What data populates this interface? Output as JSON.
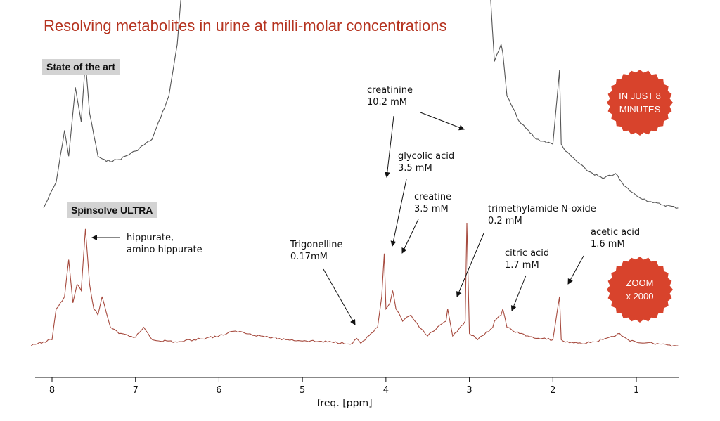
{
  "title": "Resolving metabolites in urine at milli-molar concentrations",
  "labels": {
    "state_of_art": "State of the art",
    "spinsolve_ultra": "Spinsolve ULTRA"
  },
  "badges": {
    "time": "IN JUST 8\nMINUTES",
    "zoom": "ZOOM\nx 2000"
  },
  "colors": {
    "title": "#b5331f",
    "ultra_trace": "#a64a3e",
    "state_trace": "#555555",
    "badge": "#d8432c"
  },
  "chart_data": {
    "type": "line",
    "xlabel": "freq. [ppm]",
    "xlim": [
      8.25,
      0.5
    ],
    "x_ticks": [
      8,
      7,
      6,
      5,
      4,
      3,
      2,
      1
    ],
    "x_tick_labels": [
      "8",
      "7",
      "6",
      "5",
      "4",
      "3",
      "2",
      "1"
    ],
    "x_reversed": true,
    "grid": false,
    "series": [
      {
        "name": "State of the art",
        "x": [
          8.1,
          7.95,
          7.85,
          7.8,
          7.72,
          7.65,
          7.6,
          7.55,
          7.45,
          7.35,
          7.2,
          7.0,
          6.8,
          6.6,
          6.5,
          6.45,
          2.75,
          2.7,
          2.62,
          2.6,
          2.55,
          2.4,
          2.2,
          2.0,
          1.92,
          1.9,
          1.85,
          1.6,
          1.4,
          1.25,
          1.15,
          1.0,
          0.8,
          0.5
        ],
        "y": [
          0.05,
          0.2,
          0.5,
          0.35,
          0.75,
          0.55,
          0.9,
          0.6,
          0.35,
          0.32,
          0.33,
          0.38,
          0.45,
          0.7,
          1.0,
          1.3,
          1.3,
          0.9,
          1.0,
          0.95,
          0.7,
          0.55,
          0.45,
          0.42,
          0.85,
          0.42,
          0.38,
          0.27,
          0.22,
          0.25,
          0.18,
          0.12,
          0.08,
          0.05
        ]
      },
      {
        "name": "Spinsolve ULTRA",
        "x": [
          8.25,
          8.0,
          7.95,
          7.9,
          7.85,
          7.8,
          7.75,
          7.7,
          7.65,
          7.6,
          7.55,
          7.5,
          7.45,
          7.4,
          7.3,
          7.2,
          7.0,
          6.9,
          6.8,
          6.5,
          6.0,
          5.8,
          5.5,
          5.2,
          4.4,
          4.35,
          4.3,
          4.1,
          4.05,
          4.02,
          4.0,
          3.95,
          3.92,
          3.88,
          3.8,
          3.7,
          3.6,
          3.5,
          3.28,
          3.26,
          3.2,
          3.05,
          3.03,
          3.0,
          2.9,
          2.72,
          2.7,
          2.62,
          2.6,
          2.55,
          2.4,
          2.3,
          2.2,
          2.0,
          1.92,
          1.9,
          1.85,
          1.6,
          1.4,
          1.25,
          1.2,
          1.1,
          1.0,
          0.8,
          0.5
        ],
        "y": [
          0.0,
          0.05,
          0.3,
          0.35,
          0.4,
          0.7,
          0.35,
          0.5,
          0.45,
          0.95,
          0.5,
          0.3,
          0.25,
          0.4,
          0.15,
          0.1,
          0.07,
          0.15,
          0.05,
          0.03,
          0.08,
          0.12,
          0.08,
          0.05,
          0.02,
          0.06,
          0.02,
          0.15,
          0.4,
          0.75,
          0.3,
          0.35,
          0.45,
          0.3,
          0.2,
          0.25,
          0.15,
          0.08,
          0.2,
          0.3,
          0.08,
          0.2,
          1.0,
          0.1,
          0.05,
          0.15,
          0.2,
          0.25,
          0.3,
          0.15,
          0.1,
          0.08,
          0.06,
          0.05,
          0.4,
          0.05,
          0.03,
          0.02,
          0.05,
          0.08,
          0.1,
          0.05,
          0.03,
          0.02,
          0.0
        ]
      }
    ],
    "annotations": [
      {
        "text": "hippurate,\namino hippurate",
        "ppm": 7.6
      },
      {
        "text": "Trigonelline\n0.17mM",
        "ppm": 4.35
      },
      {
        "text": "creatinine\n10.2 mM",
        "ppm": 4.02
      },
      {
        "text": "glycolic acid\n3.5 mM",
        "ppm": 3.95
      },
      {
        "text": "creatine\n3.5 mM",
        "ppm": 3.92
      },
      {
        "text": "trimethylamide N-oxide\n0.2 mM",
        "ppm": 3.26
      },
      {
        "text": "citric acid\n1.7 mM",
        "ppm": 2.6
      },
      {
        "text": "acetic acid\n1.6 mM",
        "ppm": 1.92
      }
    ]
  }
}
